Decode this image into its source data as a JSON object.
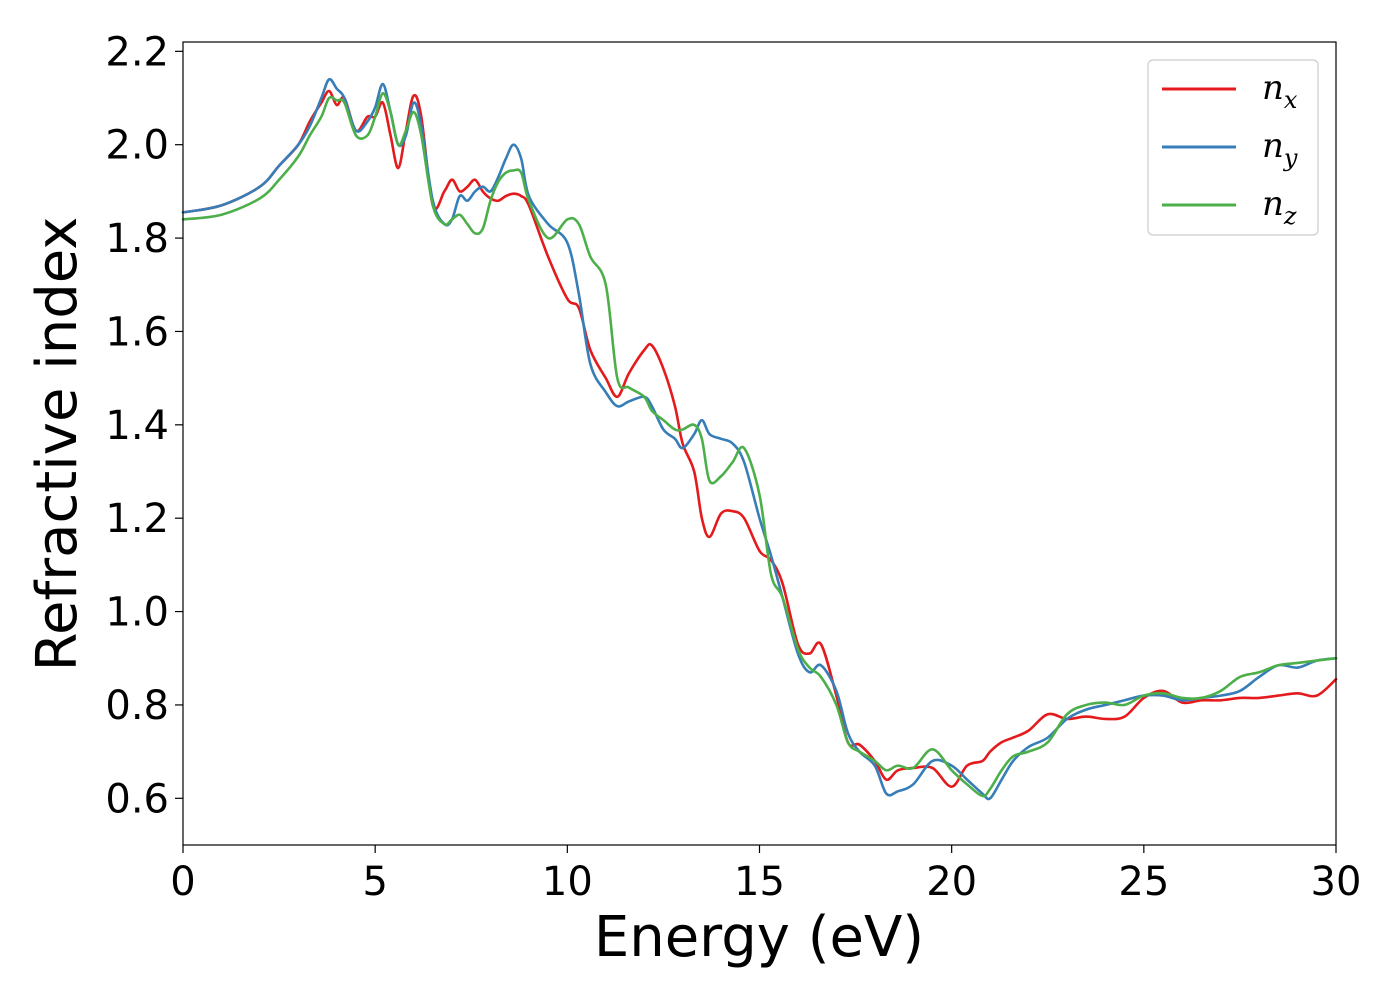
{
  "chart_data": {
    "type": "line",
    "title": "",
    "xlabel": "Energy (eV)",
    "ylabel": "Refractive index",
    "xlim": [
      0,
      30
    ],
    "ylim": [
      0.5,
      2.22
    ],
    "xticks": [
      0,
      5,
      10,
      15,
      20,
      25,
      30
    ],
    "yticks": [
      0.6,
      0.8,
      1.0,
      1.2,
      1.4,
      1.6,
      1.8,
      2.0,
      2.2
    ],
    "grid": false,
    "legend_position": "top-right",
    "series": [
      {
        "name": "n_x",
        "label_main": "n",
        "label_sub": "x",
        "color": "#e41a1c",
        "x": [
          0,
          1,
          2,
          2.5,
          3,
          3.3,
          3.6,
          3.8,
          4.0,
          4.2,
          4.5,
          4.8,
          5.0,
          5.2,
          5.4,
          5.6,
          5.8,
          6.0,
          6.2,
          6.5,
          6.8,
          7.0,
          7.2,
          7.4,
          7.6,
          7.8,
          8.0,
          8.2,
          8.4,
          8.6,
          8.8,
          9.0,
          9.5,
          10.0,
          10.3,
          10.6,
          11.0,
          11.3,
          11.6,
          12.0,
          12.2,
          12.5,
          12.8,
          13.0,
          13.3,
          13.5,
          13.7,
          14.0,
          14.3,
          14.6,
          15.0,
          15.3,
          15.6,
          16.0,
          16.3,
          16.6,
          17.0,
          17.3,
          17.6,
          18.0,
          18.3,
          18.6,
          19.0,
          19.5,
          20.0,
          20.4,
          20.8,
          21.0,
          21.3,
          21.6,
          22.0,
          22.5,
          23.0,
          23.5,
          24.0,
          24.5,
          25.0,
          25.5,
          26.0,
          26.5,
          27.0,
          27.5,
          28.0,
          28.5,
          29.0,
          29.5,
          30.0
        ],
        "values": [
          1.855,
          1.87,
          1.91,
          1.955,
          2.0,
          2.05,
          2.09,
          2.115,
          2.085,
          2.1,
          2.03,
          2.06,
          2.06,
          2.09,
          2.02,
          1.95,
          2.03,
          2.105,
          2.06,
          1.87,
          1.9,
          1.925,
          1.9,
          1.91,
          1.925,
          1.9,
          1.885,
          1.88,
          1.89,
          1.895,
          1.89,
          1.87,
          1.76,
          1.67,
          1.65,
          1.56,
          1.5,
          1.46,
          1.51,
          1.56,
          1.57,
          1.52,
          1.44,
          1.36,
          1.3,
          1.2,
          1.16,
          1.21,
          1.215,
          1.2,
          1.13,
          1.11,
          1.06,
          0.93,
          0.91,
          0.93,
          0.82,
          0.72,
          0.715,
          0.68,
          0.64,
          0.66,
          0.665,
          0.665,
          0.625,
          0.67,
          0.68,
          0.7,
          0.72,
          0.73,
          0.745,
          0.78,
          0.77,
          0.775,
          0.77,
          0.775,
          0.815,
          0.83,
          0.805,
          0.81,
          0.81,
          0.815,
          0.815,
          0.82,
          0.825,
          0.82,
          0.855
        ]
      },
      {
        "name": "n_y",
        "label_main": "n",
        "label_sub": "y",
        "color": "#377eb8",
        "x": [
          0,
          1,
          2,
          2.5,
          3,
          3.3,
          3.6,
          3.8,
          4.0,
          4.2,
          4.5,
          4.8,
          5.0,
          5.2,
          5.4,
          5.6,
          5.8,
          6.0,
          6.2,
          6.5,
          6.8,
          7.0,
          7.2,
          7.4,
          7.6,
          7.8,
          8.0,
          8.2,
          8.4,
          8.6,
          8.8,
          9.0,
          9.5,
          10.0,
          10.3,
          10.6,
          11.0,
          11.3,
          11.6,
          12.0,
          12.2,
          12.5,
          12.8,
          13.0,
          13.3,
          13.5,
          13.7,
          14.0,
          14.3,
          14.6,
          15.0,
          15.3,
          15.6,
          16.0,
          16.3,
          16.6,
          17.0,
          17.3,
          17.6,
          18.0,
          18.3,
          18.6,
          19.0,
          19.5,
          20.0,
          20.4,
          20.8,
          21.0,
          21.3,
          21.6,
          22.0,
          22.5,
          23.0,
          23.5,
          24.0,
          24.5,
          25.0,
          25.5,
          26.0,
          26.5,
          27.0,
          27.5,
          28.0,
          28.5,
          29.0,
          29.5,
          30.0
        ],
        "values": [
          1.855,
          1.87,
          1.91,
          1.955,
          2.0,
          2.04,
          2.1,
          2.14,
          2.12,
          2.1,
          2.03,
          2.05,
          2.08,
          2.13,
          2.07,
          2.0,
          2.02,
          2.09,
          2.04,
          1.88,
          1.83,
          1.84,
          1.89,
          1.88,
          1.9,
          1.91,
          1.9,
          1.93,
          1.97,
          2.0,
          1.97,
          1.89,
          1.83,
          1.79,
          1.68,
          1.53,
          1.47,
          1.44,
          1.45,
          1.46,
          1.44,
          1.39,
          1.37,
          1.35,
          1.38,
          1.41,
          1.38,
          1.37,
          1.36,
          1.32,
          1.2,
          1.12,
          1.03,
          0.91,
          0.87,
          0.885,
          0.83,
          0.74,
          0.7,
          0.67,
          0.61,
          0.615,
          0.63,
          0.68,
          0.67,
          0.64,
          0.61,
          0.6,
          0.64,
          0.68,
          0.71,
          0.73,
          0.77,
          0.79,
          0.8,
          0.81,
          0.82,
          0.82,
          0.81,
          0.815,
          0.82,
          0.83,
          0.86,
          0.885,
          0.88,
          0.895,
          0.9
        ]
      },
      {
        "name": "n_z",
        "label_main": "n",
        "label_sub": "z",
        "color": "#4daf4a",
        "x": [
          0,
          1,
          2,
          2.5,
          3,
          3.3,
          3.6,
          3.8,
          4.0,
          4.2,
          4.5,
          4.8,
          5.0,
          5.2,
          5.4,
          5.6,
          5.8,
          6.0,
          6.2,
          6.5,
          6.8,
          7.0,
          7.2,
          7.4,
          7.6,
          7.8,
          8.0,
          8.2,
          8.4,
          8.6,
          8.8,
          9.0,
          9.5,
          10.0,
          10.3,
          10.6,
          11.0,
          11.3,
          11.6,
          12.0,
          12.2,
          12.5,
          12.8,
          13.0,
          13.3,
          13.5,
          13.7,
          14.0,
          14.3,
          14.6,
          15.0,
          15.3,
          15.6,
          16.0,
          16.3,
          16.6,
          17.0,
          17.3,
          17.6,
          18.0,
          18.3,
          18.6,
          19.0,
          19.5,
          20.0,
          20.4,
          20.8,
          21.0,
          21.3,
          21.6,
          22.0,
          22.5,
          23.0,
          23.5,
          24.0,
          24.5,
          25.0,
          25.5,
          26.0,
          26.5,
          27.0,
          27.5,
          28.0,
          28.5,
          29.0,
          29.5,
          30.0
        ],
        "values": [
          1.84,
          1.85,
          1.885,
          1.925,
          1.975,
          2.02,
          2.06,
          2.1,
          2.095,
          2.09,
          2.02,
          2.02,
          2.06,
          2.11,
          2.07,
          2.0,
          2.03,
          2.07,
          2.02,
          1.87,
          1.83,
          1.84,
          1.85,
          1.83,
          1.81,
          1.82,
          1.88,
          1.92,
          1.94,
          1.945,
          1.94,
          1.88,
          1.8,
          1.84,
          1.83,
          1.76,
          1.7,
          1.5,
          1.48,
          1.46,
          1.43,
          1.41,
          1.39,
          1.39,
          1.4,
          1.37,
          1.28,
          1.29,
          1.32,
          1.35,
          1.25,
          1.08,
          1.03,
          0.92,
          0.88,
          0.86,
          0.8,
          0.72,
          0.7,
          0.68,
          0.66,
          0.67,
          0.665,
          0.705,
          0.66,
          0.63,
          0.605,
          0.62,
          0.66,
          0.69,
          0.7,
          0.72,
          0.78,
          0.8,
          0.805,
          0.8,
          0.82,
          0.825,
          0.815,
          0.815,
          0.83,
          0.86,
          0.87,
          0.885,
          0.89,
          0.895,
          0.9
        ]
      }
    ]
  }
}
